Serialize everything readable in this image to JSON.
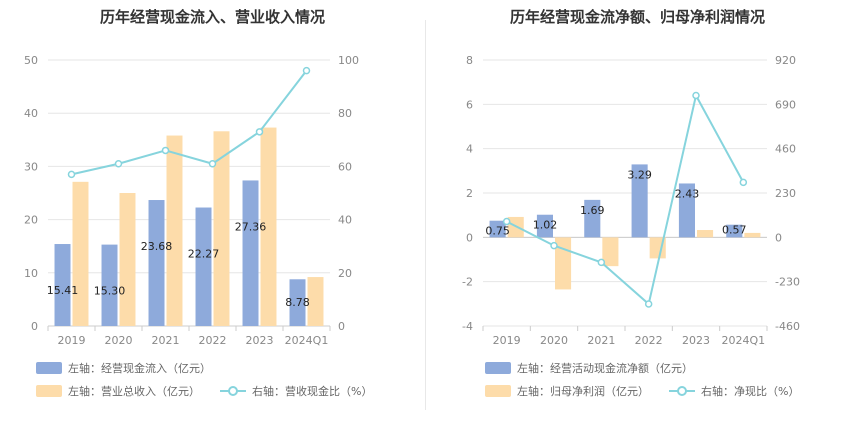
{
  "colors": {
    "blue": "#8eaadb",
    "orange": "#fddcaa",
    "line": "#86d4dd",
    "axis": "#cccccc",
    "grid": "#e6e6e6"
  },
  "chart_data": [
    {
      "type": "bar",
      "title": "历年经营现金流入、营业收入情况",
      "categories": [
        "2019",
        "2020",
        "2021",
        "2022",
        "2023",
        "2024Q1"
      ],
      "ylim_left": [
        0,
        50
      ],
      "yticks_left": [
        "0",
        "10",
        "20",
        "30",
        "40",
        "50"
      ],
      "ylim_right": [
        0,
        100
      ],
      "yticks_right": [
        "0",
        "20",
        "40",
        "60",
        "80",
        "100"
      ],
      "series": [
        {
          "name": "左轴：经营现金流入（亿元）",
          "axis": "left",
          "kind": "bar",
          "color": "#8eaadb",
          "values": [
            15.41,
            15.3,
            23.68,
            22.27,
            27.36,
            8.78
          ],
          "labels": [
            "15.41",
            "15.30",
            "23.68",
            "22.27",
            "27.36",
            "8.78"
          ]
        },
        {
          "name": "左轴：营业总收入（亿元）",
          "axis": "left",
          "kind": "bar",
          "color": "#fddcaa",
          "values": [
            27.1,
            25.0,
            35.8,
            36.6,
            37.3,
            9.2
          ]
        },
        {
          "name": "右轴：营收现金比（%）",
          "axis": "right",
          "kind": "line",
          "color": "#86d4dd",
          "values": [
            57,
            61,
            66,
            61,
            73,
            96
          ]
        }
      ],
      "grid": true,
      "legend": "bottom"
    },
    {
      "type": "bar",
      "title": "历年经营现金流净额、归母净利润情况",
      "categories": [
        "2019",
        "2020",
        "2021",
        "2022",
        "2023",
        "2024Q1"
      ],
      "ylim_left": [
        -4,
        8
      ],
      "yticks_left": [
        "-4",
        "-2",
        "0",
        "2",
        "4",
        "6",
        "8"
      ],
      "ylim_right": [
        -460,
        920
      ],
      "yticks_right": [
        "-460",
        "-230",
        "0",
        "230",
        "460",
        "690",
        "920"
      ],
      "series": [
        {
          "name": "左轴：经营活动现金流净额（亿元）",
          "axis": "left",
          "kind": "bar",
          "color": "#8eaadb",
          "values": [
            0.75,
            1.02,
            1.69,
            3.29,
            2.43,
            0.57
          ],
          "labels": [
            "0.75",
            "1.02",
            "1.69",
            "3.29",
            "2.43",
            "0.57"
          ]
        },
        {
          "name": "左轴：归母净利润（亿元）",
          "axis": "left",
          "kind": "bar",
          "color": "#fddcaa",
          "values": [
            0.92,
            -2.35,
            -1.3,
            -0.95,
            0.33,
            0.2
          ]
        },
        {
          "name": "右轴：净现比（%）",
          "axis": "right",
          "kind": "line",
          "color": "#86d4dd",
          "values": [
            82,
            -43,
            -130,
            -346,
            736,
            285
          ]
        }
      ],
      "grid": true,
      "legend": "bottom"
    }
  ]
}
